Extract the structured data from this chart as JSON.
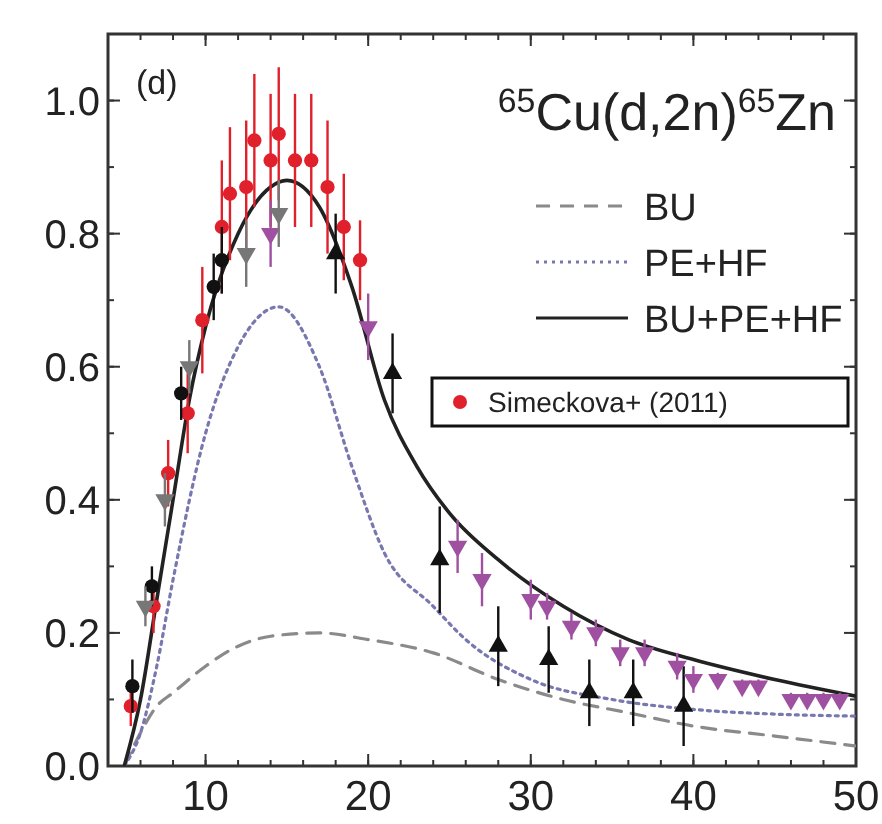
{
  "chart_data": {
    "type": "line",
    "title": "$^{65}$Cu(d,2n)$^{65}$Zn",
    "annotations": [
      "(d)"
    ],
    "xlim": [
      4,
      50
    ],
    "xticks": [
      10,
      20,
      30,
      40,
      50
    ],
    "ylim": [
      0,
      1.1
    ],
    "yticks": [
      {
        "value": 0,
        "label": "0.0"
      },
      0.2,
      0.4,
      0.6,
      0.8,
      {
        "value": 1,
        "label": "1.0"
      }
    ],
    "grid": false,
    "legend": "top right",
    "series": [
      {
        "name": "BU",
        "line_style": "dashed",
        "color": "#8a8a8a",
        "x": [
          5,
          6,
          7,
          8,
          10,
          12,
          14,
          17,
          20,
          24,
          28,
          32,
          36,
          40,
          45,
          50
        ],
        "values": [
          0,
          0.05,
          0.09,
          0.11,
          0.15,
          0.18,
          0.195,
          0.2,
          0.19,
          0.17,
          0.13,
          0.1,
          0.08,
          0.06,
          0.045,
          0.03
        ]
      },
      {
        "name": "PE+HF",
        "line_style": "dotted",
        "color": "#7878b0",
        "x": [
          5,
          6,
          7,
          8,
          10,
          12,
          14.5,
          17,
          19,
          21,
          24,
          26,
          30,
          35,
          40,
          45,
          50
        ],
        "values": [
          0,
          0.05,
          0.15,
          0.28,
          0.5,
          0.63,
          0.69,
          0.6,
          0.45,
          0.32,
          0.24,
          0.19,
          0.13,
          0.1,
          0.085,
          0.078,
          0.075
        ]
      },
      {
        "name": "BU+PE+HF",
        "line_style": "solid",
        "color": "#222222",
        "x": [
          5,
          6,
          7,
          8,
          9,
          10,
          12,
          14,
          15,
          17,
          19,
          21,
          23,
          25,
          28,
          32,
          36,
          40,
          45,
          50
        ],
        "values": [
          0,
          0.1,
          0.25,
          0.4,
          0.55,
          0.66,
          0.8,
          0.87,
          0.88,
          0.84,
          0.72,
          0.55,
          0.45,
          0.38,
          0.31,
          0.24,
          0.19,
          0.16,
          0.13,
          0.105
        ]
      },
      {
        "name": "Simeckova+ (2011)",
        "type": "scatter",
        "marker": "circle",
        "color": "#e0202a",
        "x": [
          5.4,
          6.8,
          7.7,
          8.9,
          9.8,
          11,
          11.5,
          12.5,
          13,
          14,
          14.5,
          15.5,
          16.5,
          17.5,
          18.5,
          19.5
        ],
        "values": [
          0.09,
          0.24,
          0.44,
          0.53,
          0.67,
          0.81,
          0.86,
          0.87,
          0.94,
          0.91,
          0.95,
          0.91,
          0.91,
          0.87,
          0.81,
          0.76
        ],
        "errors": [
          0.03,
          0.04,
          0.05,
          0.06,
          0.08,
          0.1,
          0.1,
          0.1,
          0.1,
          0.1,
          0.1,
          0.1,
          0.1,
          0.1,
          0.08,
          0.06
        ]
      },
      {
        "type": "scatter",
        "marker": "circle",
        "color": "#111111",
        "x": [
          5.5,
          6.7,
          8.5,
          10.5,
          11
        ],
        "values": [
          0.12,
          0.27,
          0.56,
          0.72,
          0.76
        ],
        "errors": [
          0.04,
          0.03,
          0.04,
          0.05,
          0.05
        ]
      },
      {
        "type": "scatter",
        "marker": "triangle",
        "color": "#111111",
        "x": [
          18,
          21.5,
          24.4,
          28,
          31.1,
          33.6,
          36.3,
          39.4
        ],
        "values": [
          0.77,
          0.59,
          0.31,
          0.18,
          0.16,
          0.11,
          0.11,
          0.09
        ],
        "errors": [
          0.06,
          0.06,
          0.08,
          0.06,
          0.05,
          0.05,
          0.05,
          0.06
        ]
      },
      {
        "type": "scatter",
        "marker": "triangle-down",
        "color": "#a050a0",
        "x": [
          14,
          20,
          25.5,
          27,
          30,
          31,
          32.5,
          34,
          35.5,
          37,
          39,
          40,
          41.5,
          43,
          44,
          46,
          47,
          48,
          49
        ],
        "values": [
          0.8,
          0.66,
          0.33,
          0.28,
          0.25,
          0.24,
          0.21,
          0.2,
          0.17,
          0.17,
          0.15,
          0.13,
          0.13,
          0.12,
          0.12,
          0.1,
          0.1,
          0.1,
          0.1
        ],
        "errors": [
          0.05,
          0.05,
          0.04,
          0.04,
          0.03,
          0.02,
          0.02,
          0.02,
          0.02,
          0.02,
          0.02,
          0.02,
          0.01,
          0.01,
          0.01,
          0.01,
          0.01,
          0.01,
          0.01
        ]
      },
      {
        "type": "scatter",
        "marker": "triangle-down",
        "color": "#777777",
        "x": [
          6.3,
          7.5,
          9,
          12.5,
          14.5
        ],
        "values": [
          0.24,
          0.4,
          0.6,
          0.77,
          0.83
        ],
        "errors": [
          0.03,
          0.04,
          0.04,
          0.05,
          0.05
        ]
      }
    ]
  }
}
